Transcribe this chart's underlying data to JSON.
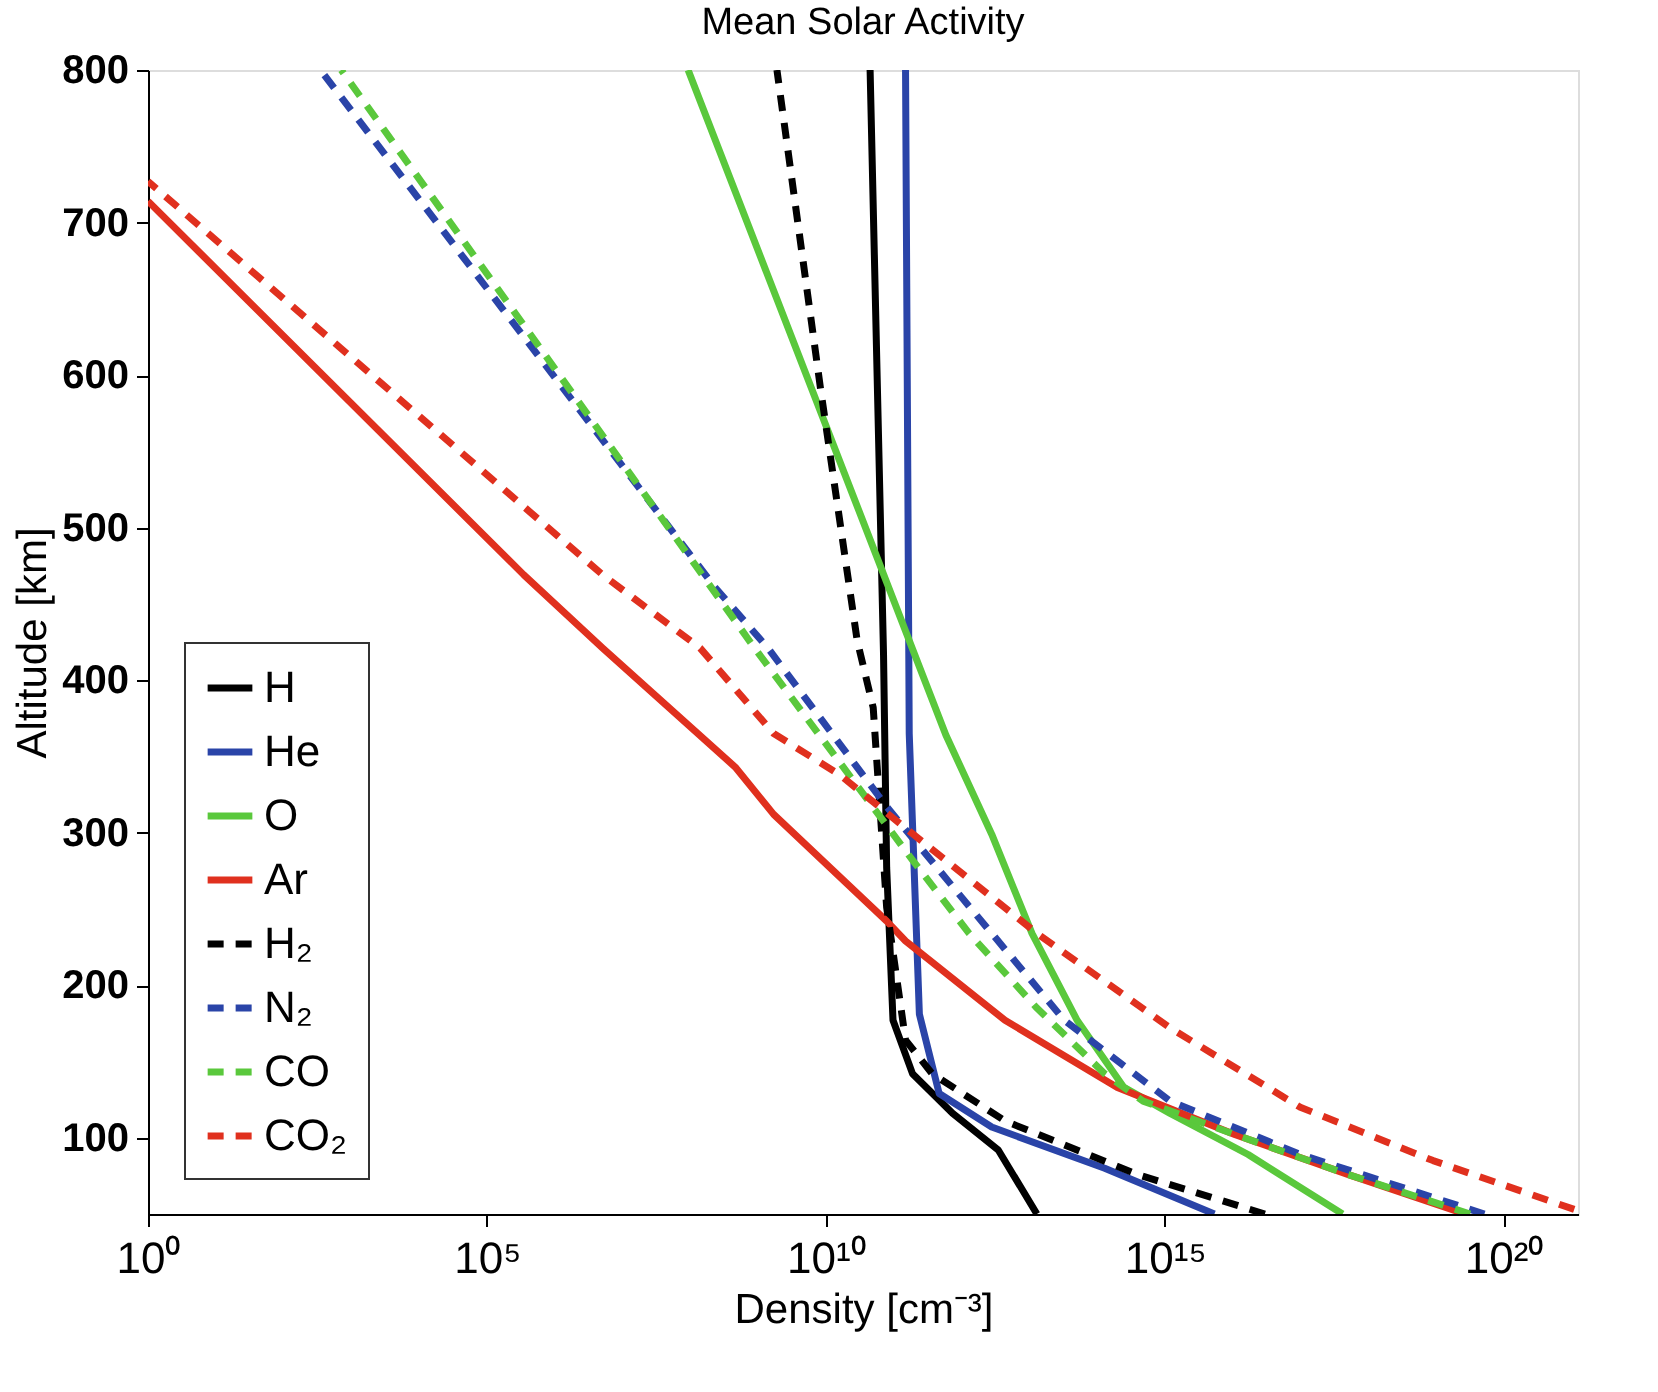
{
  "chart_data": {
    "type": "line",
    "title": "Mean Solar Activity",
    "xlabel": "Density [cm⁻³]",
    "ylabel": "Altitude [km]",
    "log": "x",
    "grid": false,
    "legend": "bottom left",
    "marker": "none",
    "xlim": [
      1,
      1.25e+21
    ],
    "xticks": [
      {
        "value": 1,
        "label": "10⁰"
      },
      {
        "value": 100000.0,
        "label": "10⁵"
      },
      {
        "value": 10000000000.0,
        "label": "10¹⁰"
      },
      {
        "value": 1000000000000000.0,
        "label": "10¹⁵"
      },
      {
        "value": 1e+20,
        "label": "10²⁰"
      }
    ],
    "ylim": [
      50,
      800
    ],
    "yticks": [
      100,
      200,
      300,
      400,
      500,
      600,
      700,
      800
    ],
    "series": [
      {
        "name": "H",
        "color": "#000000",
        "line_style": "solid",
        "x": [
          13000000000000.0,
          3500000000000.0,
          740000000000.0,
          190000000000.0,
          98000000000.0,
          79000000000.0,
          71000000000.0,
          45000000000.0
        ],
        "values": [
          50,
          92,
          116,
          142,
          177,
          277,
          417,
          800
        ]
      },
      {
        "name": "He",
        "color": "#2a44a8",
        "line_style": "solid",
        "x": [
          5400000000000000.0,
          130000000000000.0,
          2800000000000.0,
          470000000000.0,
          240000000000.0,
          170000000000.0,
          150000000000.0
        ],
        "values": [
          50,
          80,
          107,
          129,
          181,
          365,
          800
        ]
      },
      {
        "name": "O",
        "color": "#5ac83c",
        "line_style": "solid",
        "x": [
          4.2e+17,
          1.7e+16,
          1200000000000000.0,
          250000000000000.0,
          51000000000000.0,
          11000000000000.0,
          2800000000000.0,
          590000000000.0,
          93000000.0
        ],
        "values": [
          50,
          89,
          116,
          133,
          177,
          234,
          299,
          364,
          800
        ]
      },
      {
        "name": "Ar",
        "color": "#e0301e",
        "line_style": "solid",
        "x": [
          2.7e+19,
          5e+17,
          1.1e+16,
          200000000000000.0,
          4400000000000.0,
          150000000000.0,
          79000000000.0,
          1700000000.0,
          460000000.0,
          5100000.0,
          350000.0,
          1
        ],
        "values": [
          50,
          76,
          102,
          133,
          177,
          229,
          242,
          312,
          343,
          421,
          469,
          714
        ]
      },
      {
        "name": "H₂",
        "color": "#000000",
        "line_style": "dashed",
        "x": [
          3e+16,
          390000000000000.0,
          4400000000000.0,
          370000000000.0,
          150000000000.0,
          79000000000.0,
          50000000000.0,
          29000000000.0,
          8300000000.0,
          1900000000.0
        ],
        "values": [
          50,
          76,
          111,
          142,
          164,
          251,
          382,
          426,
          592,
          800
        ]
      },
      {
        "name": "N₂",
        "color": "#2a44a8",
        "line_style": "dashed",
        "x": [
          5.2e+19,
          1e+17,
          1200000000000000.0,
          33000000000000.0,
          910000000000.0,
          79000000000.0,
          1400000000.0,
          230000000.0,
          350.0
        ],
        "values": [
          50,
          89,
          124,
          177,
          260,
          317,
          421,
          461,
          800
        ]
      },
      {
        "name": "CO",
        "color": "#5ac83c",
        "line_style": "dashed",
        "x": [
          3.2e+19,
          5e+17,
          1.1e+16,
          480000000000000.0,
          130000000000000.0,
          13000000000000.0,
          1300000000000.0,
          190000000000.0,
          890000000.0,
          710.0
        ],
        "values": [
          50,
          76,
          102,
          124,
          142,
          185,
          234,
          282,
          421,
          800
        ]
      },
      {
        "name": "CO₂",
        "color": "#e0301e",
        "line_style": "dashed",
        "x": [
          1.1e+21,
          9.1e+18,
          1e+17,
          1200000000000000.0,
          13000000000000.0,
          150000000000.0,
          16000000000.0,
          1700000000.0,
          140000000.0,
          5100000.0,
          1
        ],
        "values": [
          53,
          85,
          120,
          172,
          234,
          303,
          338,
          365,
          421,
          469,
          727
        ]
      }
    ]
  }
}
